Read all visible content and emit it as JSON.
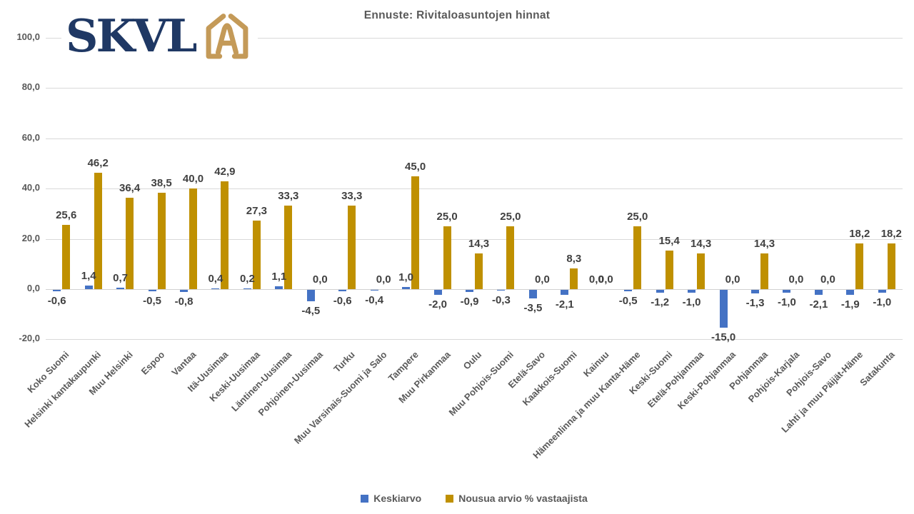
{
  "logo": {
    "text": "SKVL",
    "icon": "house-a-icon",
    "navy_color": "#1F3864",
    "gold_color": "#C49A58"
  },
  "chart_data": {
    "type": "bar",
    "title": "Ennuste: Rivitaloasuntojen hinnat",
    "categories": [
      "Koko Suomi",
      "Helsinki kantakaupunki",
      "Muu Helsinki",
      "Espoo",
      "Vantaa",
      "Itä-Uusimaa",
      "Keski-Uusimaa",
      "Läntinen-Uusimaa",
      "Pohjoinen-Uusimaa",
      "Turku",
      "Muu Varsinais-Suomi ja Salo",
      "Tampere",
      "Muu Pirkanmaa",
      "Oulu",
      "Muu Pohjois-Suomi",
      "Etelä-Savo",
      "Kaakkois-Suomi",
      "Kainuu",
      "Hämeenlinna ja muu Kanta-Häme",
      "Keski-Suomi",
      "Etelä-Pohjanmaa",
      "Keski-Pohjanmaa",
      "Pohjanmaa",
      "Pohjois-Karjala",
      "Pohjois-Savo",
      "Lahti ja muu Päijät-Häme",
      "Satakunta"
    ],
    "series": [
      {
        "name": "Keskiarvo",
        "color": "#4472C4",
        "values": [
          -0.6,
          1.4,
          0.7,
          -0.5,
          -0.8,
          0.4,
          0.2,
          1.1,
          -4.5,
          -0.6,
          -0.4,
          1.0,
          -2.0,
          -0.9,
          -0.3,
          -3.5,
          -2.1,
          0.0,
          -0.5,
          -1.2,
          -1.0,
          -15.0,
          -1.3,
          -1.0,
          -2.1,
          -1.9,
          -1.0
        ]
      },
      {
        "name": "Nousua arvio % vastaajista",
        "color": "#BF9000",
        "values": [
          25.6,
          46.2,
          36.4,
          38.5,
          40.0,
          42.9,
          27.3,
          33.3,
          0.0,
          33.3,
          0.0,
          45.0,
          25.0,
          14.3,
          25.0,
          0.0,
          8.3,
          0.0,
          25.0,
          15.4,
          14.3,
          0.0,
          14.3,
          0.0,
          0.0,
          18.2,
          18.2
        ]
      }
    ],
    "y_ticks": [
      100,
      80,
      60,
      40,
      20,
      0,
      -20
    ],
    "ylim": [
      -20,
      100
    ],
    "grid": true,
    "legend_position": "bottom",
    "decimal_separator": ",",
    "colors": {
      "gridline": "#D9D9D9",
      "data_label": "#404040",
      "axis_text": "#595959",
      "title_text": "#595959"
    }
  }
}
